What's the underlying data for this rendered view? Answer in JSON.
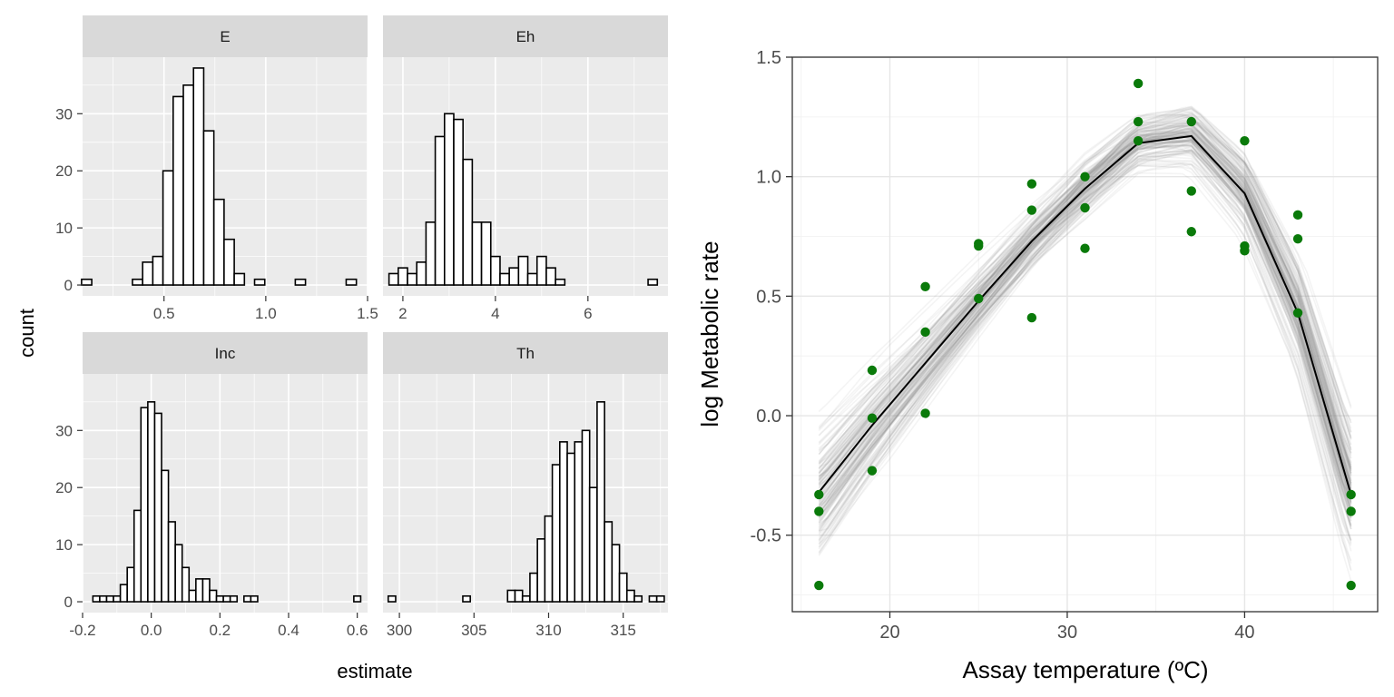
{
  "left_figure": {
    "ylabel": "count",
    "xlabel": "estimate"
  },
  "right_figure": {
    "ylabel": "log Metabolic rate",
    "xlabel": "Assay temperature (ºC)"
  },
  "chart_data": [
    {
      "type": "bar",
      "panel": "E",
      "x_tick_labels": [
        "0.5",
        "1.0",
        "1.5"
      ],
      "x_ticks": [
        0.5,
        1.0,
        1.5
      ],
      "xlim": [
        0.1,
        1.5
      ],
      "y_tick_labels": [
        "0",
        "10",
        "20",
        "30"
      ],
      "y_ticks": [
        0,
        10,
        20,
        30
      ],
      "ylim": [
        -1.9,
        39.9
      ],
      "bin_centers": [
        0.12,
        0.17,
        0.22,
        0.27,
        0.32,
        0.37,
        0.42,
        0.47,
        0.52,
        0.57,
        0.62,
        0.67,
        0.72,
        0.77,
        0.82,
        0.87,
        0.92,
        0.97,
        1.02,
        1.07,
        1.12,
        1.17,
        1.22,
        1.27,
        1.32,
        1.37,
        1.42
      ],
      "bin_width": 0.05,
      "counts": [
        1,
        0,
        0,
        0,
        0,
        1,
        4,
        5,
        20,
        33,
        35,
        38,
        27,
        15,
        8,
        2,
        0,
        1,
        0,
        0,
        0,
        1,
        0,
        0,
        0,
        0,
        1
      ]
    },
    {
      "type": "bar",
      "panel": "Eh",
      "x_tick_labels": [
        "2",
        "4",
        "6"
      ],
      "x_ticks": [
        2,
        4,
        6
      ],
      "xlim": [
        1.57,
        7.73
      ],
      "y_tick_labels": [
        "0",
        "10",
        "20",
        "30"
      ],
      "y_ticks": [
        0,
        10,
        20,
        30
      ],
      "ylim": [
        -1.9,
        39.9
      ],
      "bin_centers": [
        1.8,
        2.0,
        2.2,
        2.4,
        2.6,
        2.8,
        3.0,
        3.2,
        3.4,
        3.6,
        3.8,
        4.0,
        4.2,
        4.4,
        4.6,
        4.8,
        5.0,
        5.2,
        5.4,
        5.6,
        5.8,
        6.0,
        6.2,
        6.4,
        6.6,
        6.8,
        7.0,
        7.2,
        7.4
      ],
      "bin_width": 0.2,
      "counts": [
        2,
        3,
        2,
        4,
        11,
        26,
        30,
        29,
        22,
        11,
        11,
        5,
        2,
        3,
        5,
        2,
        5,
        3,
        1,
        0,
        0,
        0,
        0,
        0,
        0,
        0,
        0,
        0,
        1
      ]
    },
    {
      "type": "bar",
      "panel": "Inc",
      "x_tick_labels": [
        "-0.2",
        "0.0",
        "0.2",
        "0.4",
        "0.6"
      ],
      "x_ticks": [
        -0.2,
        0.0,
        0.2,
        0.4,
        0.6
      ],
      "xlim": [
        -0.2,
        0.63
      ],
      "y_tick_labels": [
        "0",
        "10",
        "20",
        "30"
      ],
      "y_ticks": [
        0,
        10,
        20,
        30
      ],
      "ylim": [
        -1.9,
        39.9
      ],
      "bin_centers": [
        -0.16,
        -0.14,
        -0.12,
        -0.1,
        -0.08,
        -0.06,
        -0.04,
        -0.02,
        0.0,
        0.02,
        0.04,
        0.06,
        0.08,
        0.1,
        0.12,
        0.14,
        0.16,
        0.18,
        0.2,
        0.22,
        0.24,
        0.26,
        0.28,
        0.3,
        0.32,
        0.34,
        0.36,
        0.38,
        0.4,
        0.42,
        0.44,
        0.46,
        0.48,
        0.5,
        0.52,
        0.54,
        0.56,
        0.58,
        0.6
      ],
      "bin_width": 0.02,
      "counts": [
        1,
        1,
        1,
        1,
        3,
        6,
        16,
        34,
        35,
        33,
        23,
        14,
        10,
        6,
        2,
        4,
        4,
        2,
        1,
        1,
        1,
        0,
        1,
        1,
        0,
        0,
        0,
        0,
        0,
        0,
        0,
        0,
        0,
        0,
        0,
        0,
        0,
        0,
        1
      ]
    },
    {
      "type": "bar",
      "panel": "Th",
      "x_tick_labels": [
        "300",
        "305",
        "310",
        "315"
      ],
      "x_ticks": [
        300,
        305,
        310,
        315
      ],
      "xlim": [
        298.9,
        318.0
      ],
      "y_tick_labels": [
        "0",
        "10",
        "20",
        "30"
      ],
      "y_ticks": [
        0,
        10,
        20,
        30
      ],
      "ylim": [
        -1.9,
        39.9
      ],
      "bin_centers": [
        299.5,
        300.0,
        300.5,
        301.0,
        301.5,
        302.0,
        302.5,
        303.0,
        303.5,
        304.0,
        304.5,
        305.0,
        305.5,
        306.0,
        306.5,
        307.0,
        307.5,
        308.0,
        308.5,
        309.0,
        309.5,
        310.0,
        310.5,
        311.0,
        311.5,
        312.0,
        312.5,
        313.0,
        313.5,
        314.0,
        314.5,
        315.0,
        315.5,
        316.0,
        316.5,
        317.0,
        317.5
      ],
      "bin_width": 0.5,
      "counts": [
        1,
        0,
        0,
        0,
        0,
        0,
        0,
        0,
        0,
        0,
        1,
        0,
        0,
        0,
        0,
        0,
        2,
        2,
        1,
        5,
        11,
        15,
        24,
        28,
        26,
        28,
        30,
        20,
        35,
        14,
        10,
        5,
        2,
        1,
        0,
        1,
        1
      ]
    },
    {
      "type": "line",
      "panel": "log Metabolic rate vs Assay temperature",
      "x_tick_labels": [
        "20",
        "30",
        "40"
      ],
      "x_ticks": [
        20,
        30,
        40
      ],
      "xlim": [
        14.5,
        47.5
      ],
      "y_tick_labels": [
        "-0.5",
        "0.0",
        "0.5",
        "1.0",
        "1.5"
      ],
      "y_ticks": [
        -0.5,
        0.0,
        0.5,
        1.0,
        1.5
      ],
      "ylim": [
        -0.82,
        1.5
      ],
      "grid": true,
      "fit_line": {
        "x": [
          16,
          19,
          22,
          25,
          28,
          31,
          34,
          37,
          40,
          43,
          46
        ],
        "y": [
          -0.32,
          -0.04,
          0.22,
          0.48,
          0.73,
          0.95,
          1.14,
          1.17,
          0.93,
          0.43,
          -0.33
        ]
      },
      "points_color": "#0a7a0a",
      "points": [
        {
          "x": 16,
          "y": -0.33
        },
        {
          "x": 16,
          "y": -0.4
        },
        {
          "x": 16,
          "y": -0.71
        },
        {
          "x": 19,
          "y": 0.19
        },
        {
          "x": 19,
          "y": -0.01
        },
        {
          "x": 19,
          "y": -0.23
        },
        {
          "x": 22,
          "y": 0.54
        },
        {
          "x": 22,
          "y": 0.35
        },
        {
          "x": 22,
          "y": 0.01
        },
        {
          "x": 25,
          "y": 0.72
        },
        {
          "x": 25,
          "y": 0.71
        },
        {
          "x": 25,
          "y": 0.49
        },
        {
          "x": 28,
          "y": 0.97
        },
        {
          "x": 28,
          "y": 0.86
        },
        {
          "x": 28,
          "y": 0.41
        },
        {
          "x": 31,
          "y": 1.0
        },
        {
          "x": 31,
          "y": 0.87
        },
        {
          "x": 31,
          "y": 0.7
        },
        {
          "x": 34,
          "y": 1.39
        },
        {
          "x": 34,
          "y": 1.23
        },
        {
          "x": 34,
          "y": 1.15
        },
        {
          "x": 37,
          "y": 1.23
        },
        {
          "x": 37,
          "y": 0.94
        },
        {
          "x": 37,
          "y": 0.77
        },
        {
          "x": 40,
          "y": 1.15
        },
        {
          "x": 40,
          "y": 0.71
        },
        {
          "x": 40,
          "y": 0.69
        },
        {
          "x": 43,
          "y": 0.84
        },
        {
          "x": 43,
          "y": 0.74
        },
        {
          "x": 43,
          "y": 0.43
        },
        {
          "x": 46,
          "y": -0.33
        },
        {
          "x": 46,
          "y": -0.4
        },
        {
          "x": 46,
          "y": -0.71
        }
      ],
      "band_ensemble_count": 150
    }
  ]
}
